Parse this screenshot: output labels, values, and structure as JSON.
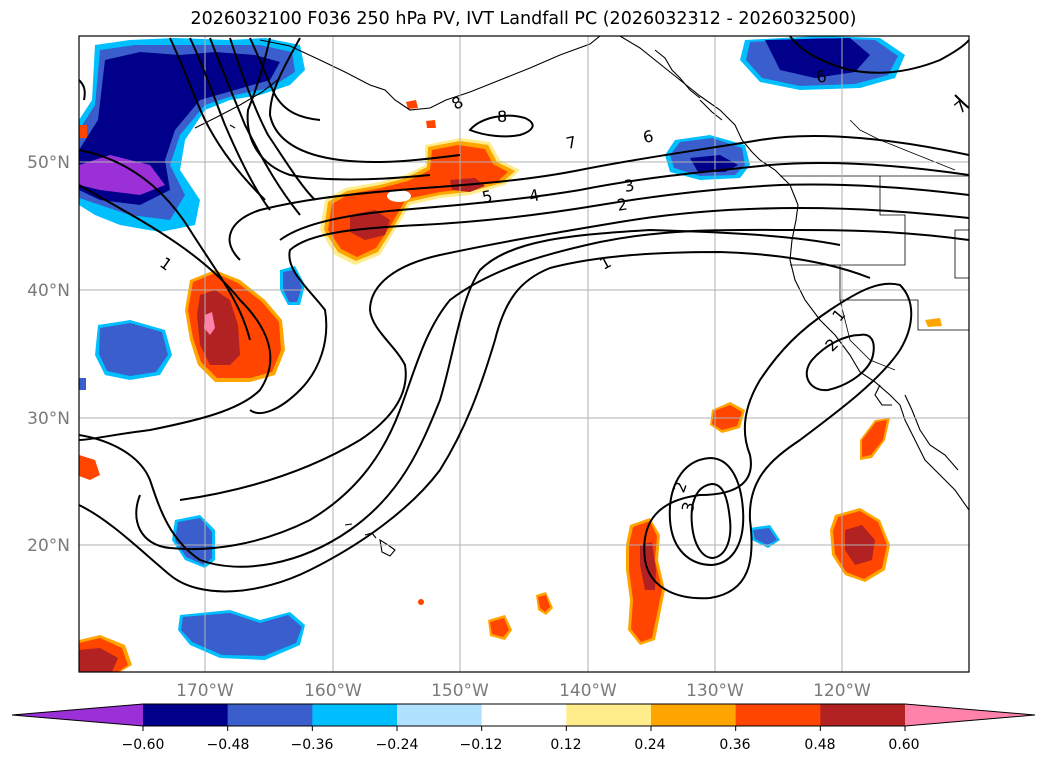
{
  "title": "2026032100 F036 250 hPa PV, IVT Landfall PC (2026032312 - 2026032500)",
  "lat_labels": [
    "50°N",
    "40°N",
    "30°N",
    "20°N"
  ],
  "lon_labels": [
    "170°W",
    "160°W",
    "150°W",
    "140°W",
    "130°W",
    "120°W"
  ],
  "contour_labels": [
    "8",
    "8",
    "7",
    "6",
    "6",
    "5",
    "4",
    "3",
    "2",
    "1",
    "1",
    "1",
    "2",
    "2",
    "3",
    "7"
  ],
  "colorbar": {
    "tick_labels": [
      "−0.60",
      "−0.48",
      "−0.36",
      "−0.24",
      "−0.12",
      "0.12",
      "0.24",
      "0.36",
      "0.48",
      "0.60"
    ],
    "colors": [
      "#9b30d9",
      "#00008b",
      "#3a5fcd",
      "#00bfff",
      "#b0e2ff",
      "#ffffff",
      "#ffec8b",
      "#ffa500",
      "#ff4500",
      "#b22222",
      "#ff82ab"
    ]
  },
  "colors": {
    "neg_strong": "#00008b",
    "neg_mid": "#3a5fcd",
    "neg_light": "#00bfff",
    "pos_mid": "#ff4500",
    "pos_strong": "#b22222",
    "pos_light": "#ffa500",
    "pos_pale": "#ffec8b",
    "grid": "#b0b0b0",
    "contour": "#000000"
  }
}
